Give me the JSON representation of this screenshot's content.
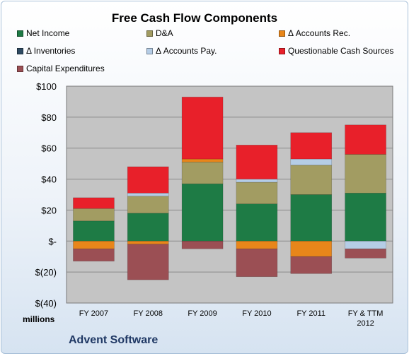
{
  "chart_data": {
    "type": "bar",
    "stacked": true,
    "title": "Free Cash Flow Components",
    "units_label": "millions",
    "company": "Advent Software",
    "categories": [
      [
        "FY 2007"
      ],
      [
        "FY 2008"
      ],
      [
        "FY 2009"
      ],
      [
        "FY 2010"
      ],
      [
        "FY 2011"
      ],
      [
        "FY & TTM",
        "2012"
      ]
    ],
    "ylim": [
      -40,
      100
    ],
    "yticks": [
      {
        "value": 100,
        "label": "$100"
      },
      {
        "value": 80,
        "label": "$80"
      },
      {
        "value": 60,
        "label": "$60"
      },
      {
        "value": 40,
        "label": "$40"
      },
      {
        "value": 20,
        "label": "$20"
      },
      {
        "value": 0,
        "label": "$-"
      },
      {
        "value": -20,
        "label": "$(20)"
      },
      {
        "value": -40,
        "label": "$(40)"
      }
    ],
    "grid": true,
    "legend_position": "top",
    "series": [
      {
        "name": "Net Income",
        "color": "#1e7b45",
        "values": [
          13,
          18,
          37,
          24,
          30,
          31
        ]
      },
      {
        "name": "D&A",
        "color": "#a29c62",
        "values": [
          8,
          11,
          14,
          14,
          19,
          25
        ]
      },
      {
        "name": "Δ Accounts Rec.",
        "color": "#e8861a",
        "values": [
          -5,
          -2,
          2,
          -5,
          -10,
          0
        ]
      },
      {
        "name": "Δ Inventories",
        "color": "#2e4a62",
        "values": [
          0,
          0,
          0,
          0,
          0,
          0
        ]
      },
      {
        "name": "Δ Accounts Pay.",
        "color": "#b5cde6",
        "values": [
          0,
          2,
          0,
          2,
          4,
          -5
        ]
      },
      {
        "name": "Questionable Cash Sources",
        "color": "#e8202a",
        "values": [
          7,
          17,
          40,
          22,
          17,
          19
        ]
      },
      {
        "name": "Capital Expenditures",
        "color": "#9b4f54",
        "values": [
          -8,
          -23,
          -5,
          -18,
          -11,
          -6
        ]
      }
    ]
  }
}
